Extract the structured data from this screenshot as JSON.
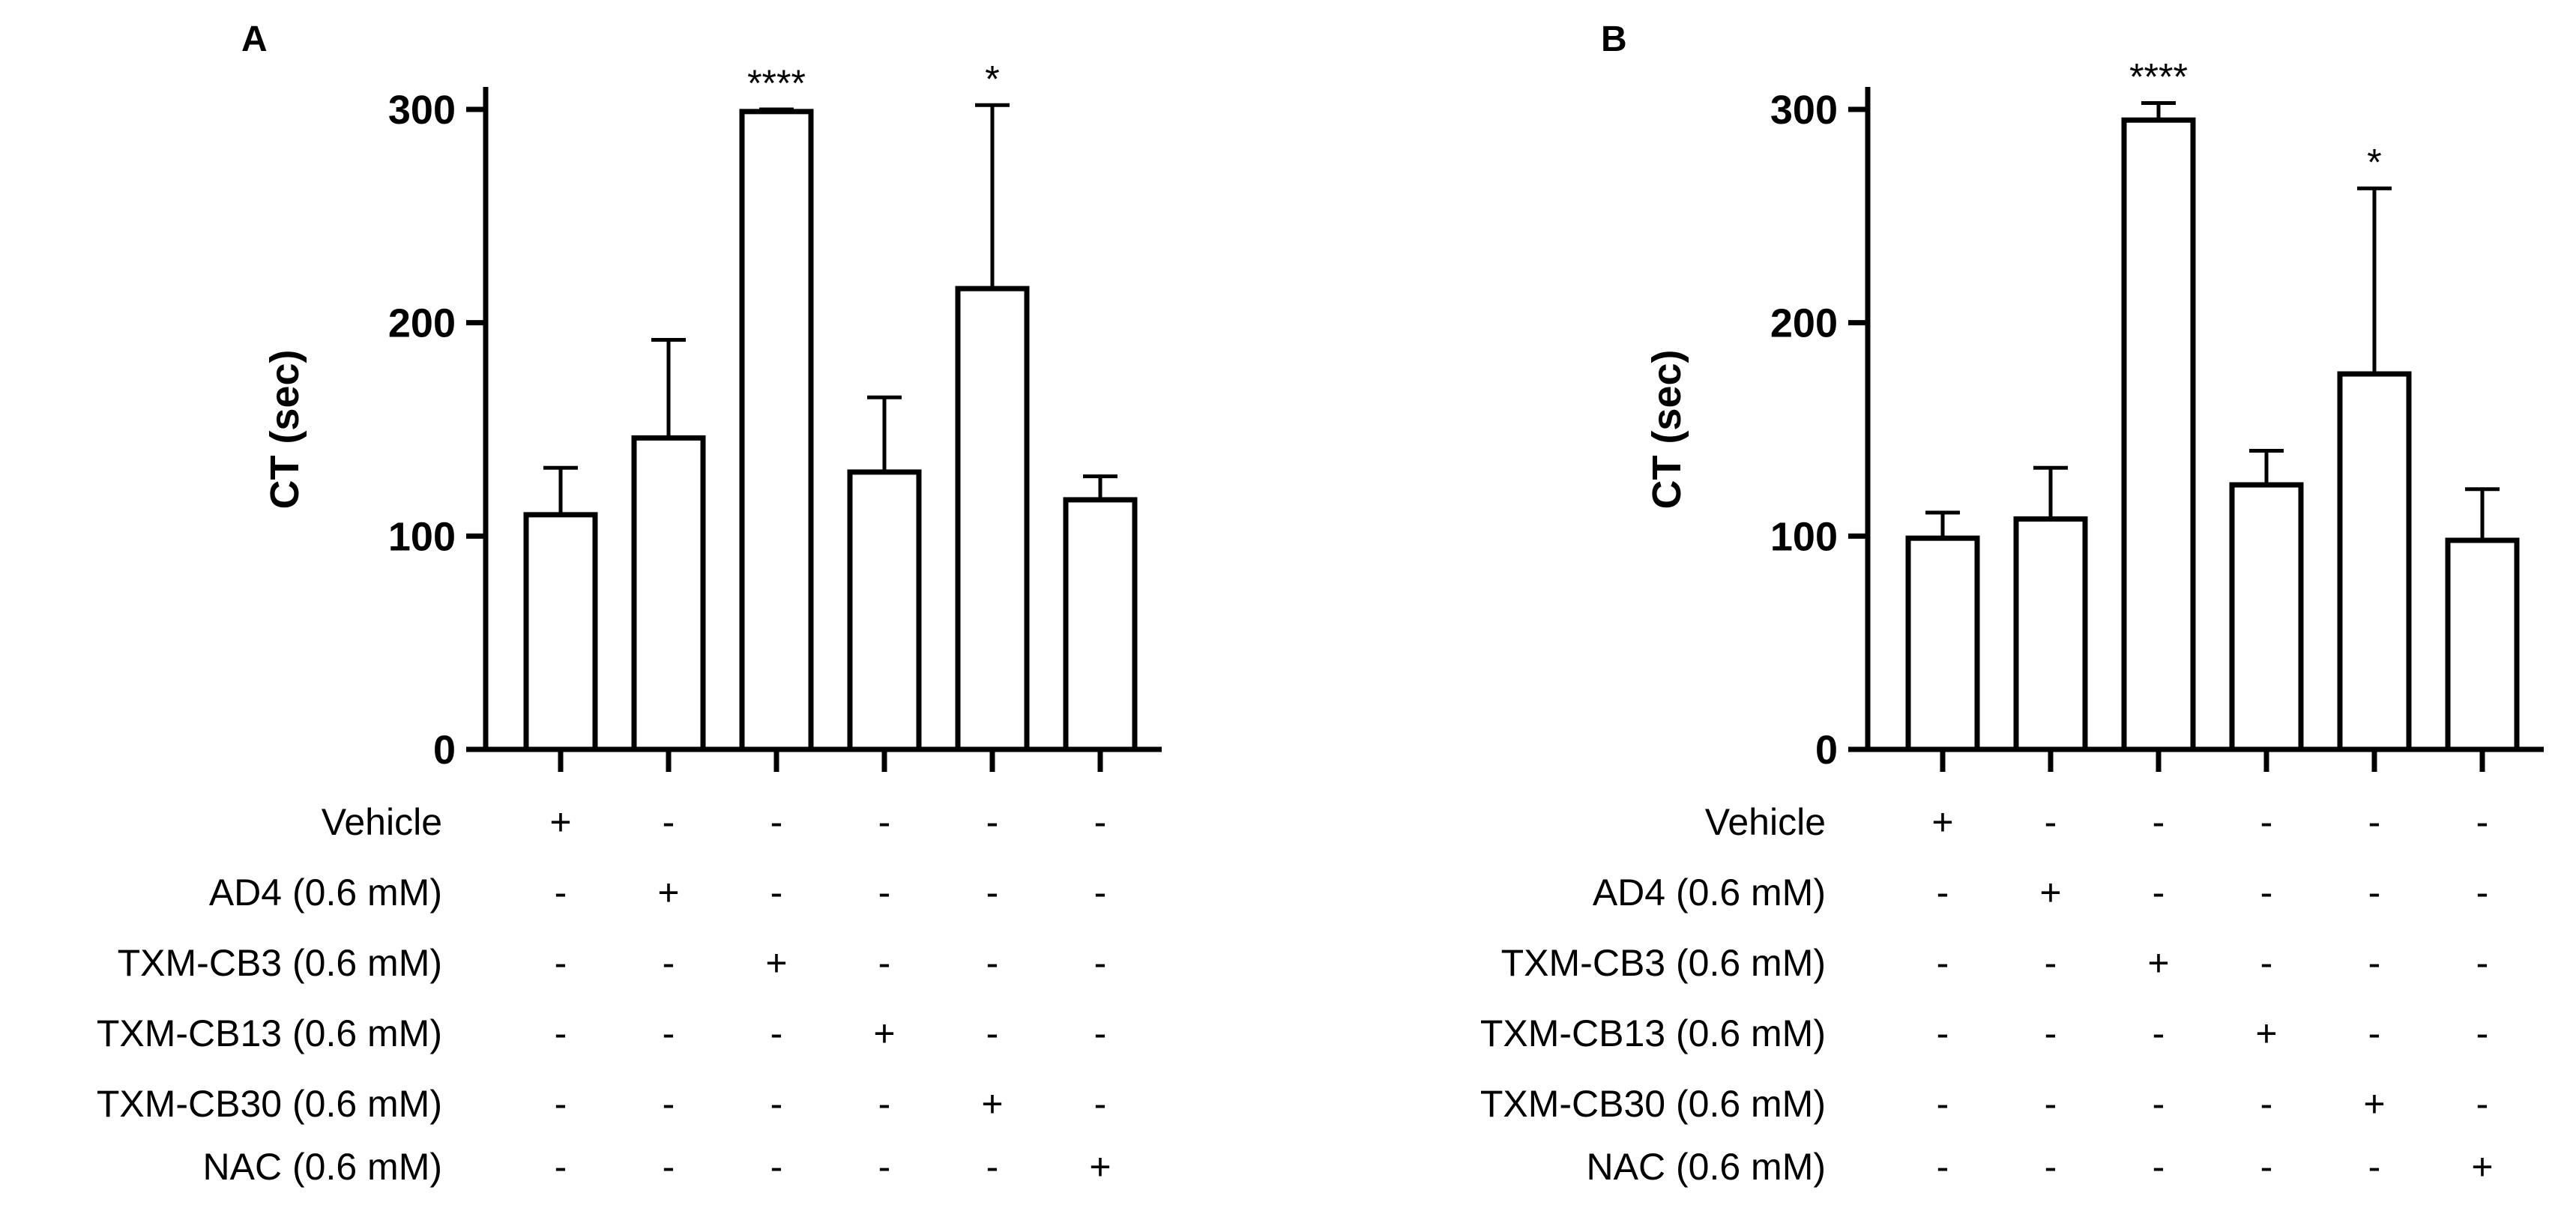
{
  "chart_data": [
    {
      "type": "bar",
      "panel": "A",
      "ylabel": "CT (sec)",
      "ylim": [
        0,
        300
      ],
      "yticks": [
        0,
        100,
        200,
        300
      ],
      "values": [
        110,
        146,
        299,
        130,
        216,
        117
      ],
      "errors": [
        22,
        46,
        1,
        35,
        86,
        11
      ],
      "significance": [
        "",
        "",
        "****",
        "",
        "*",
        ""
      ]
    },
    {
      "type": "bar",
      "panel": "B",
      "ylabel": "CT (sec)",
      "ylim": [
        0,
        300
      ],
      "yticks": [
        0,
        100,
        200,
        300
      ],
      "values": [
        99,
        108,
        295,
        124,
        176,
        98
      ],
      "errors": [
        12,
        24,
        8,
        16,
        87,
        24
      ],
      "significance": [
        "",
        "",
        "****",
        "",
        "*",
        ""
      ]
    }
  ],
  "treatment_rows": [
    {
      "label": "Vehicle",
      "signs": [
        "+",
        "-",
        "-",
        "-",
        "-",
        "-"
      ]
    },
    {
      "label": "AD4 (0.6 mM)",
      "signs": [
        "-",
        "+",
        "-",
        "-",
        "-",
        "-"
      ]
    },
    {
      "label": "TXM-CB3 (0.6 mM)",
      "signs": [
        "-",
        "-",
        "+",
        "-",
        "-",
        "-"
      ]
    },
    {
      "label": "TXM-CB13 (0.6 mM)",
      "signs": [
        "-",
        "-",
        "-",
        "+",
        "-",
        "-"
      ]
    },
    {
      "label": "TXM-CB30 (0.6 mM)",
      "signs": [
        "-",
        "-",
        "-",
        "-",
        "+",
        "-"
      ]
    },
    {
      "label": "NAC (0.6 mM)",
      "signs": [
        "-",
        "-",
        "-",
        "-",
        "-",
        "+"
      ]
    }
  ]
}
